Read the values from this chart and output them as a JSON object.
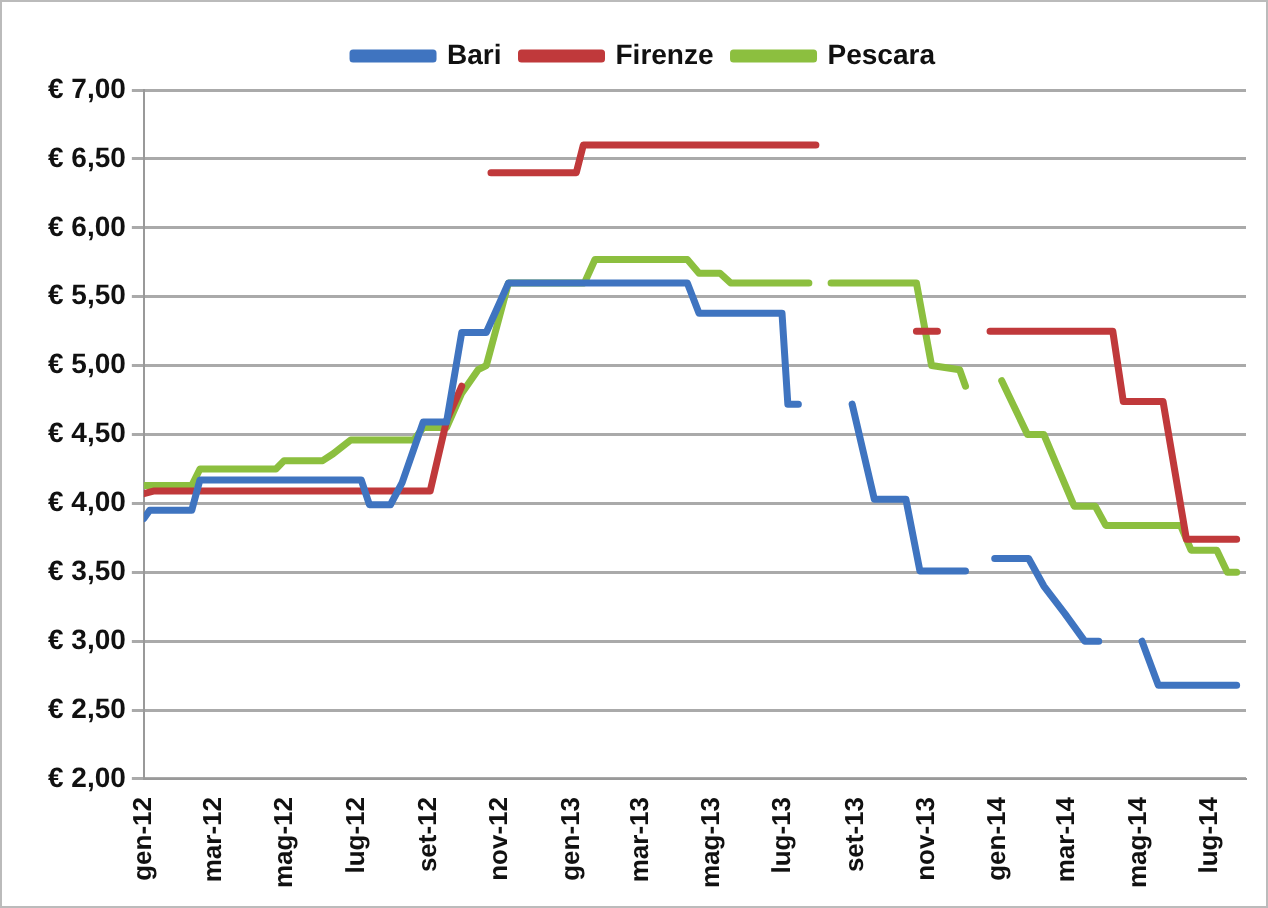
{
  "chart_data": {
    "type": "line",
    "legend": "top",
    "grid": "y",
    "marker": "none",
    "line_style": "solid",
    "xlim": [
      "2012-01",
      "2014-08"
    ],
    "xticks": [
      {
        "value": "2012-01",
        "label": "gen-12"
      },
      {
        "value": "2012-03",
        "label": "mar-12"
      },
      {
        "value": "2012-05",
        "label": "mag-12"
      },
      {
        "value": "2012-07",
        "label": "lug-12"
      },
      {
        "value": "2012-09",
        "label": "set-12"
      },
      {
        "value": "2012-11",
        "label": "nov-12"
      },
      {
        "value": "2013-01",
        "label": "gen-13"
      },
      {
        "value": "2013-03",
        "label": "mar-13"
      },
      {
        "value": "2013-05",
        "label": "mag-13"
      },
      {
        "value": "2013-07",
        "label": "lug-13"
      },
      {
        "value": "2013-09",
        "label": "set-13"
      },
      {
        "value": "2013-11",
        "label": "nov-13"
      },
      {
        "value": "2014-01",
        "label": "gen-14"
      },
      {
        "value": "2014-03",
        "label": "mar-14"
      },
      {
        "value": "2014-05",
        "label": "mag-14"
      },
      {
        "value": "2014-07",
        "label": "lug-14"
      }
    ],
    "ylim": [
      2,
      7
    ],
    "yticks": [
      {
        "value": 2,
        "label": "€ 2,00"
      },
      {
        "value": 2.5,
        "label": "€ 2,50"
      },
      {
        "value": 3,
        "label": "€ 3,00"
      },
      {
        "value": 3.5,
        "label": "€ 3,50"
      },
      {
        "value": 4,
        "label": "€ 4,00"
      },
      {
        "value": 4.5,
        "label": "€ 4,50"
      },
      {
        "value": 5,
        "label": "€ 5,00"
      },
      {
        "value": 5.5,
        "label": "€ 5,50"
      },
      {
        "value": 6,
        "label": "€ 6,00"
      },
      {
        "value": 6.5,
        "label": "€ 6,50"
      },
      {
        "value": 7,
        "label": "€ 7,00"
      }
    ],
    "series": [
      {
        "name": "Bari",
        "color": "#3f74c0",
        "x": [
          "2012-01-01",
          "2012-01-06",
          "2012-02-11",
          "2012-02-18",
          "2012-07-05",
          "2012-07-12",
          "2012-07-30",
          "2012-08-09",
          "2012-08-27",
          "2012-09-16",
          "2012-09-29",
          "2012-10-20",
          "2012-11-08",
          "2013-04-10",
          "2013-04-20",
          "2013-06-30",
          "2013-07-05",
          "2013-07-14",
          "2013-08-01",
          "2013-08-29",
          "2013-09-17",
          "2013-10-14",
          "2013-10-26",
          "2013-12-04",
          "2013-12-15",
          "2013-12-29",
          "2014-01-27",
          "2014-02-09",
          "2014-02-27",
          "2014-03-16",
          "2014-03-28",
          "2014-04-10",
          "2014-05-04",
          "2014-05-18",
          "2014-07-24"
        ],
        "values": [
          3.89,
          3.95,
          3.95,
          4.17,
          4.17,
          3.99,
          3.99,
          4.15,
          4.59,
          4.59,
          5.24,
          5.24,
          5.6,
          5.6,
          5.38,
          5.38,
          4.72,
          4.72,
          null,
          4.72,
          4.03,
          4.03,
          3.51,
          3.51,
          null,
          3.6,
          3.6,
          3.4,
          3.2,
          3.0,
          3.0,
          null,
          3.0,
          2.68,
          2.68
        ]
      },
      {
        "name": "Firenze",
        "color": "#c0393b",
        "x": [
          "2012-01-01",
          "2012-01-10",
          "2012-09-02",
          "2012-09-16",
          "2012-09-29",
          "2012-10-10",
          "2012-10-24",
          "2013-01-05",
          "2013-01-11",
          "2013-07-29",
          "2013-09-15",
          "2013-10-23",
          "2013-11-10",
          "2013-11-20",
          "2013-12-25",
          "2014-04-09",
          "2014-04-18",
          "2014-05-22",
          "2014-06-11",
          "2014-07-24"
        ],
        "values": [
          4.07,
          4.09,
          4.09,
          4.6,
          4.85,
          null,
          6.4,
          6.4,
          6.6,
          6.6,
          null,
          5.25,
          5.25,
          null,
          5.25,
          5.25,
          4.74,
          4.74,
          3.74,
          3.74
        ]
      },
      {
        "name": "Pescara",
        "color": "#8cbf3f",
        "x": [
          "2012-01-01",
          "2012-02-11",
          "2012-02-18",
          "2012-04-23",
          "2012-04-30",
          "2012-06-02",
          "2012-06-11",
          "2012-06-26",
          "2012-08-19",
          "2012-08-27",
          "2012-09-16",
          "2012-09-29",
          "2012-10-13",
          "2012-10-20",
          "2012-11-08",
          "2013-01-12",
          "2013-01-21",
          "2013-04-10",
          "2013-04-20",
          "2013-05-08",
          "2013-05-17",
          "2013-07-23",
          "2013-08-01",
          "2013-08-11",
          "2013-10-23",
          "2013-11-05",
          "2013-11-29",
          "2013-12-04",
          "2013-12-12",
          "2014-01-04",
          "2014-01-26",
          "2014-02-09",
          "2014-02-19",
          "2014-03-07",
          "2014-03-25",
          "2014-04-03",
          "2014-06-06",
          "2014-06-15",
          "2014-07-07",
          "2014-07-16",
          "2014-07-24"
        ],
        "values": [
          4.13,
          4.13,
          4.25,
          4.25,
          4.31,
          4.31,
          4.36,
          4.46,
          4.46,
          4.55,
          4.55,
          4.8,
          4.97,
          5.0,
          5.6,
          5.6,
          5.77,
          5.77,
          5.67,
          5.67,
          5.6,
          5.6,
          null,
          5.6,
          5.6,
          5.0,
          4.97,
          4.85,
          null,
          4.89,
          4.5,
          4.5,
          4.3,
          3.98,
          3.98,
          3.84,
          3.84,
          3.66,
          3.66,
          3.5,
          3.5
        ]
      }
    ]
  }
}
